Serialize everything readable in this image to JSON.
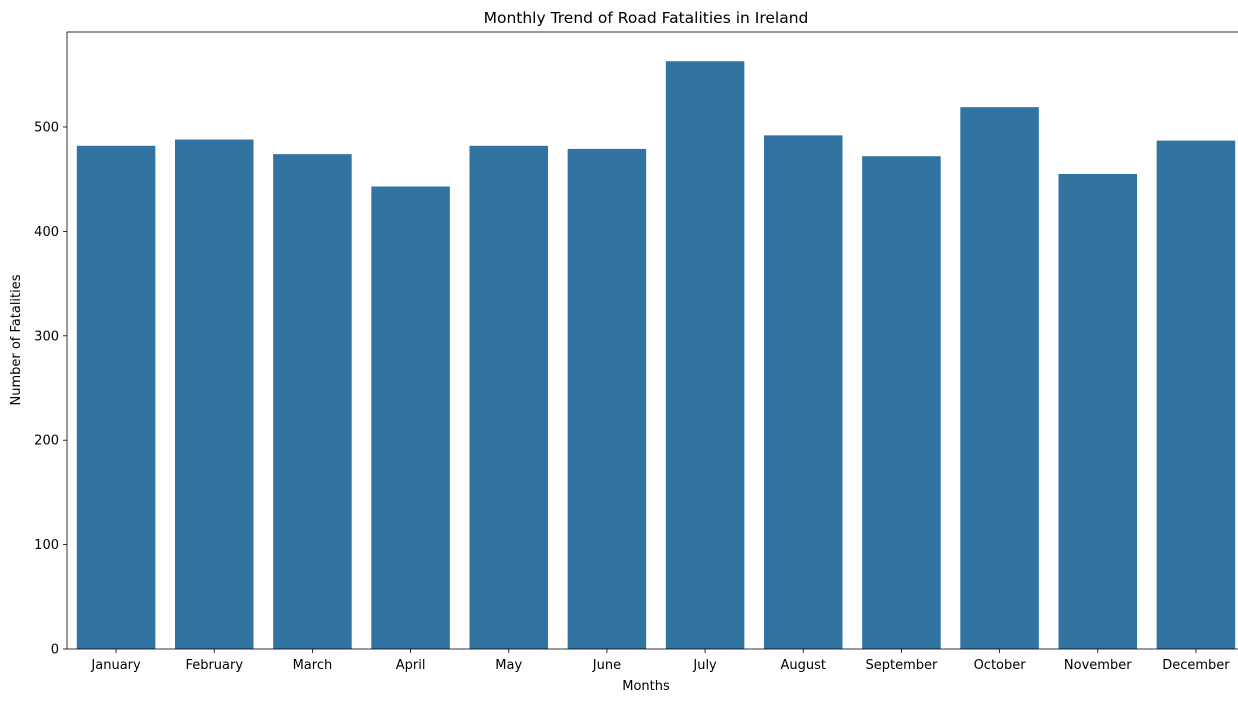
{
  "chart_data": {
    "type": "bar",
    "title": "Monthly Trend of Road Fatalities in Ireland",
    "xlabel": "Months",
    "ylabel": "Number of Fatalities",
    "categories": [
      "January",
      "February",
      "March",
      "April",
      "May",
      "June",
      "July",
      "August",
      "September",
      "October",
      "November",
      "December"
    ],
    "values": [
      482,
      488,
      474,
      443,
      482,
      479,
      563,
      492,
      472,
      519,
      455,
      487
    ],
    "ylim": [
      0,
      591
    ],
    "yticks": [
      0,
      100,
      200,
      300,
      400,
      500
    ],
    "bar_color": "#3274a1",
    "grid": false,
    "legend": "none"
  }
}
